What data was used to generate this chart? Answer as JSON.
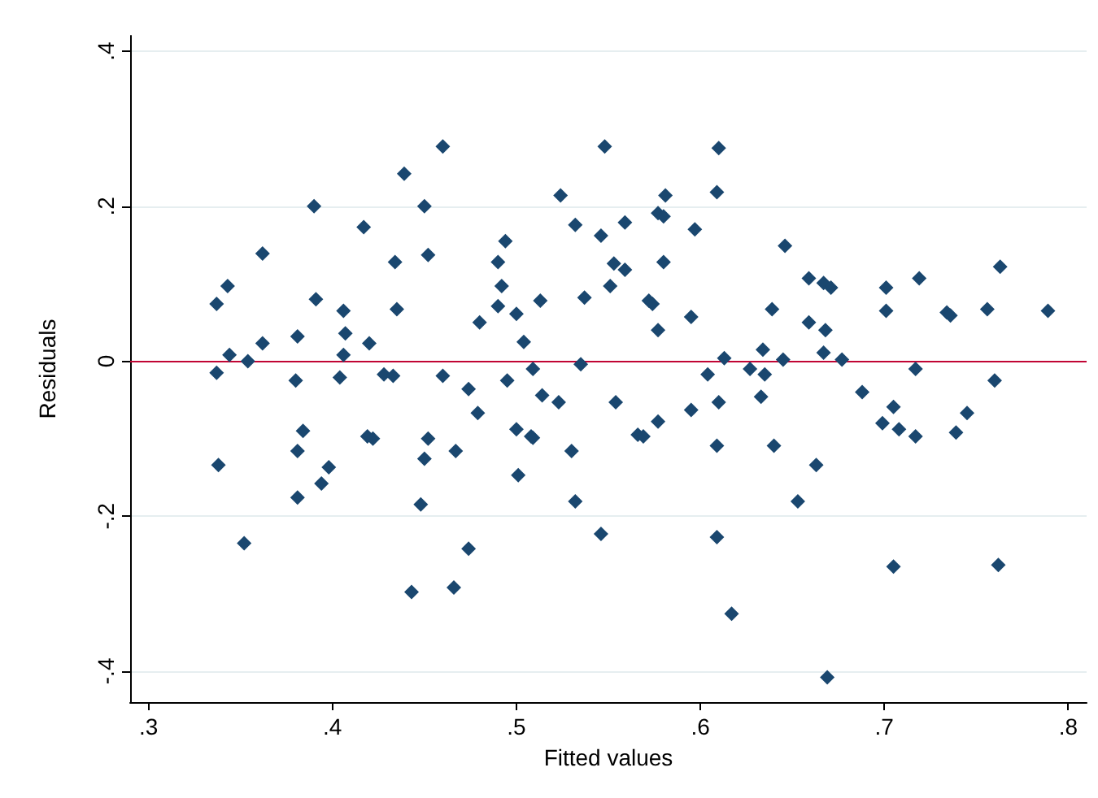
{
  "chart_data": {
    "type": "scatter",
    "xlabel": "Fitted values",
    "ylabel": "Residuals",
    "marker": "diamond",
    "grid": "y",
    "xlim": [
      0.29,
      0.81
    ],
    "ylim": [
      -0.44,
      0.42
    ],
    "xticks": [
      {
        "value": 0.3,
        "label": ".3"
      },
      {
        "value": 0.4,
        "label": ".4"
      },
      {
        "value": 0.5,
        "label": ".5"
      },
      {
        "value": 0.6,
        "label": ".6"
      },
      {
        "value": 0.7,
        "label": ".7"
      },
      {
        "value": 0.8,
        "label": ".8"
      }
    ],
    "yticks": [
      {
        "value": -0.4,
        "label": "-.4"
      },
      {
        "value": -0.2,
        "label": "-.2"
      },
      0,
      {
        "value": 0.2,
        "label": ".2"
      },
      {
        "value": 0.4,
        "label": ".4"
      }
    ],
    "ref_lines": [
      {
        "axis": "y",
        "value": 0,
        "color": "#c10534"
      }
    ],
    "series": [
      {
        "color": "#1a476f",
        "x": [
          0.337,
          0.337,
          0.338,
          0.343,
          0.344,
          0.352,
          0.354,
          0.362,
          0.362,
          0.38,
          0.381,
          0.381,
          0.381,
          0.384,
          0.39,
          0.391,
          0.394,
          0.398,
          0.404,
          0.406,
          0.406,
          0.407,
          0.417,
          0.419,
          0.42,
          0.422,
          0.428,
          0.433,
          0.434,
          0.435,
          0.439,
          0.443,
          0.448,
          0.45,
          0.45,
          0.452,
          0.452,
          0.46,
          0.46,
          0.466,
          0.467,
          0.474,
          0.474,
          0.479,
          0.48,
          0.49,
          0.49,
          0.492,
          0.494,
          0.495,
          0.5,
          0.5,
          0.501,
          0.504,
          0.508,
          0.509,
          0.509,
          0.513,
          0.514,
          0.523,
          0.524,
          0.53,
          0.532,
          0.532,
          0.535,
          0.537,
          0.546,
          0.546,
          0.548,
          0.551,
          0.553,
          0.554,
          0.559,
          0.559,
          0.566,
          0.569,
          0.572,
          0.574,
          0.577,
          0.577,
          0.577,
          0.58,
          0.58,
          0.581,
          0.595,
          0.595,
          0.597,
          0.604,
          0.609,
          0.609,
          0.609,
          0.61,
          0.61,
          0.613,
          0.617,
          0.627,
          0.633,
          0.634,
          0.635,
          0.639,
          0.64,
          0.645,
          0.646,
          0.653,
          0.659,
          0.659,
          0.663,
          0.667,
          0.667,
          0.668,
          0.669,
          0.671,
          0.677,
          0.688,
          0.699,
          0.701,
          0.701,
          0.705,
          0.705,
          0.708,
          0.717,
          0.717,
          0.719,
          0.734,
          0.736,
          0.739,
          0.745,
          0.756,
          0.76,
          0.762,
          0.763,
          0.789
        ],
        "values": [
          0.074,
          -0.015,
          -0.134,
          0.097,
          0.008,
          -0.235,
          0.0,
          0.023,
          0.139,
          -0.025,
          0.032,
          -0.116,
          -0.176,
          -0.09,
          0.2,
          0.08,
          -0.158,
          -0.137,
          -0.021,
          0.065,
          0.008,
          0.036,
          0.173,
          -0.097,
          0.023,
          -0.1,
          -0.017,
          -0.019,
          0.128,
          0.067,
          0.242,
          -0.298,
          -0.185,
          0.2,
          -0.126,
          0.137,
          -0.1,
          0.277,
          -0.019,
          -0.292,
          -0.116,
          -0.242,
          -0.036,
          -0.067,
          0.05,
          0.128,
          0.071,
          0.097,
          0.155,
          -0.025,
          0.061,
          -0.088,
          -0.147,
          0.025,
          -0.097,
          -0.099,
          -0.01,
          0.078,
          -0.044,
          -0.053,
          0.214,
          -0.116,
          0.176,
          -0.181,
          -0.004,
          0.082,
          0.162,
          -0.223,
          0.277,
          0.097,
          0.126,
          -0.053,
          0.179,
          0.118,
          -0.095,
          -0.097,
          0.078,
          0.074,
          0.191,
          0.04,
          -0.078,
          0.187,
          0.128,
          0.214,
          0.057,
          -0.063,
          0.17,
          -0.017,
          0.218,
          -0.109,
          -0.227,
          0.275,
          -0.053,
          0.004,
          -0.326,
          -0.01,
          -0.046,
          0.015,
          -0.017,
          0.067,
          -0.109,
          0.002,
          0.149,
          -0.181,
          0.107,
          0.05,
          -0.134,
          0.101,
          0.011,
          0.04,
          -0.408,
          0.095,
          0.002,
          -0.04,
          -0.08,
          0.095,
          0.065,
          -0.059,
          -0.265,
          -0.088,
          -0.01,
          -0.097,
          0.107,
          0.063,
          0.059,
          -0.092,
          -0.067,
          0.067,
          -0.025,
          -0.263,
          0.122,
          0.065
        ]
      }
    ]
  }
}
